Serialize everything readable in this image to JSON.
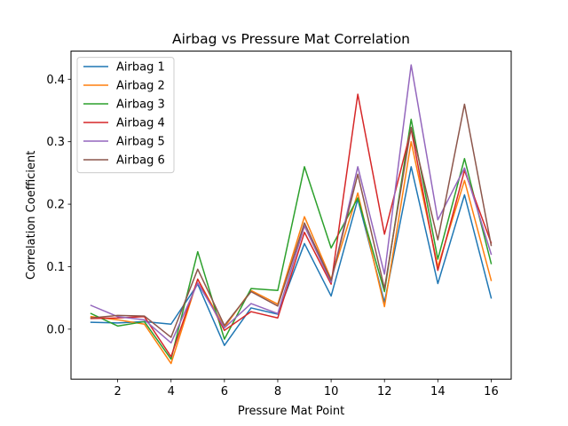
{
  "chart_data": {
    "type": "line",
    "title": "Airbag vs Pressure Mat Correlation",
    "xlabel": "Pressure Mat Point",
    "ylabel": "Correlation Coefficient",
    "xlim": [
      0.25,
      16.75
    ],
    "ylim": [
      -0.08,
      0.445
    ],
    "x_ticks": [
      2,
      4,
      6,
      8,
      10,
      12,
      14,
      16
    ],
    "y_ticks": [
      0.0,
      0.1,
      0.2,
      0.3,
      0.4
    ],
    "y_tick_labels": [
      "0.0",
      "0.1",
      "0.2",
      "0.3",
      "0.4"
    ],
    "grid": false,
    "legend_position": "top-left",
    "x": [
      1,
      2,
      3,
      4,
      5,
      6,
      7,
      8,
      9,
      10,
      11,
      12,
      13,
      14,
      15,
      16
    ],
    "series": [
      {
        "name": "Airbag 1",
        "color": "#1f77b4",
        "values": [
          0.011,
          0.01,
          0.012,
          0.008,
          0.072,
          -0.026,
          0.034,
          0.024,
          0.137,
          0.053,
          0.208,
          0.043,
          0.26,
          0.073,
          0.215,
          0.05
        ]
      },
      {
        "name": "Airbag 2",
        "color": "#ff7f0e",
        "values": [
          0.02,
          0.015,
          0.008,
          -0.055,
          0.08,
          0.003,
          0.062,
          0.04,
          0.18,
          0.08,
          0.218,
          0.036,
          0.3,
          0.1,
          0.238,
          0.078
        ]
      },
      {
        "name": "Airbag 3",
        "color": "#2ca02c",
        "values": [
          0.025,
          0.005,
          0.012,
          -0.048,
          0.124,
          -0.016,
          0.065,
          0.062,
          0.26,
          0.13,
          0.21,
          0.06,
          0.336,
          0.112,
          0.273,
          0.105
        ]
      },
      {
        "name": "Airbag 4",
        "color": "#d62728",
        "values": [
          0.017,
          0.018,
          0.02,
          -0.044,
          0.08,
          -0.002,
          0.028,
          0.018,
          0.155,
          0.072,
          0.376,
          0.152,
          0.32,
          0.094,
          0.254,
          0.138
        ]
      },
      {
        "name": "Airbag 5",
        "color": "#9467bd",
        "values": [
          0.038,
          0.02,
          0.015,
          -0.022,
          0.074,
          0.002,
          0.041,
          0.025,
          0.165,
          0.075,
          0.26,
          0.088,
          0.423,
          0.175,
          0.258,
          0.12
        ]
      },
      {
        "name": "Airbag 6",
        "color": "#8c564b",
        "values": [
          0.018,
          0.022,
          0.021,
          -0.013,
          0.096,
          0.006,
          0.06,
          0.037,
          0.17,
          0.078,
          0.248,
          0.065,
          0.323,
          0.143,
          0.36,
          0.134
        ]
      }
    ]
  }
}
